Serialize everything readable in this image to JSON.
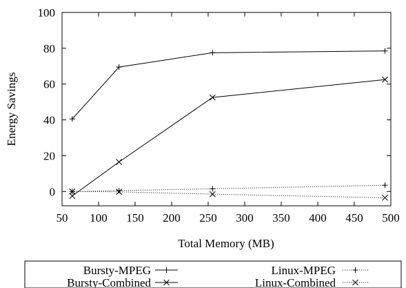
{
  "chart_data": {
    "type": "line",
    "title": "",
    "xlabel": "Total Memory (MB)",
    "ylabel": "Energy Savings",
    "xlim": [
      50,
      500
    ],
    "ylim": [
      -8,
      100
    ],
    "xticks": [
      50,
      100,
      150,
      200,
      250,
      300,
      350,
      400,
      450,
      500
    ],
    "yticks": [
      0,
      20,
      40,
      60,
      80,
      100
    ],
    "grid": false,
    "legend_position": "bottom",
    "series": [
      {
        "name": "Bursty-MPEG",
        "x": [
          64,
          128,
          256,
          492
        ],
        "values": [
          40.5,
          69.5,
          77.5,
          78.5
        ],
        "marker": "plus",
        "style": "solid"
      },
      {
        "name": "Bursty-Combined",
        "x": [
          64,
          128,
          256,
          492
        ],
        "values": [
          -2.5,
          16.5,
          52.5,
          62.5
        ],
        "marker": "cross",
        "style": "solid"
      },
      {
        "name": "Linux-MPEG",
        "x": [
          64,
          128,
          256,
          492
        ],
        "values": [
          0,
          0.5,
          1.5,
          3.5
        ],
        "marker": "plus",
        "style": "dotted"
      },
      {
        "name": "Linux-Combined",
        "x": [
          64,
          128,
          256,
          492
        ],
        "values": [
          0,
          -0.2,
          -1.5,
          -3.5
        ],
        "marker": "cross",
        "style": "dotted"
      }
    ]
  }
}
